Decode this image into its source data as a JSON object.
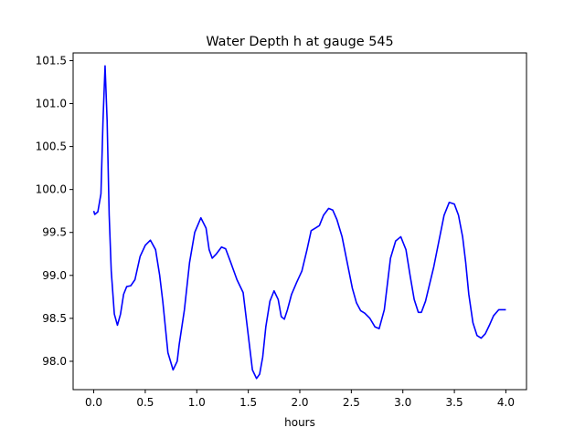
{
  "chart_data": {
    "type": "line",
    "title": "Water Depth h at gauge 545",
    "xlabel": "hours",
    "ylabel": "",
    "xlim": [
      -0.2,
      4.2
    ],
    "ylim": [
      97.67,
      101.59
    ],
    "grid": false,
    "xticks": [
      0.0,
      0.5,
      1.0,
      1.5,
      2.0,
      2.5,
      3.0,
      3.5,
      4.0
    ],
    "xtick_labels": [
      "0.0",
      "0.5",
      "1.0",
      "1.5",
      "2.0",
      "2.5",
      "3.0",
      "3.5",
      "4.0"
    ],
    "yticks": [
      98.0,
      98.5,
      99.0,
      99.5,
      100.0,
      100.5,
      101.0,
      101.5
    ],
    "ytick_labels": [
      "98.0",
      "98.5",
      "99.0",
      "99.5",
      "100.0",
      "100.5",
      "101.0",
      "101.5"
    ],
    "series": [
      {
        "color": "#0000ff",
        "x": [
          0.0,
          0.01,
          0.04,
          0.07,
          0.09,
          0.11,
          0.13,
          0.15,
          0.17,
          0.2,
          0.23,
          0.26,
          0.29,
          0.32,
          0.36,
          0.4,
          0.45,
          0.5,
          0.55,
          0.6,
          0.64,
          0.67,
          0.72,
          0.77,
          0.81,
          0.83,
          0.88,
          0.93,
          0.98,
          1.04,
          1.09,
          1.12,
          1.15,
          1.19,
          1.24,
          1.28,
          1.33,
          1.39,
          1.45,
          1.5,
          1.54,
          1.58,
          1.61,
          1.64,
          1.67,
          1.71,
          1.75,
          1.79,
          1.82,
          1.85,
          1.88,
          1.92,
          1.97,
          2.02,
          2.07,
          2.11,
          2.15,
          2.19,
          2.23,
          2.28,
          2.32,
          2.36,
          2.41,
          2.46,
          2.51,
          2.55,
          2.59,
          2.63,
          2.68,
          2.73,
          2.77,
          2.82,
          2.85,
          2.88,
          2.93,
          2.98,
          3.03,
          3.07,
          3.11,
          3.15,
          3.18,
          3.22,
          3.26,
          3.3,
          3.35,
          3.4,
          3.45,
          3.5,
          3.54,
          3.58,
          3.61,
          3.64,
          3.68,
          3.72,
          3.76,
          3.8,
          3.84,
          3.88,
          3.93,
          3.98,
          4.0
        ],
        "y": [
          99.75,
          99.71,
          99.74,
          99.95,
          100.8,
          101.44,
          100.8,
          99.7,
          99.05,
          98.55,
          98.42,
          98.55,
          98.78,
          98.87,
          98.88,
          98.95,
          99.22,
          99.35,
          99.41,
          99.3,
          99.0,
          98.7,
          98.1,
          97.9,
          98.0,
          98.2,
          98.6,
          99.15,
          99.5,
          99.67,
          99.55,
          99.3,
          99.2,
          99.25,
          99.33,
          99.31,
          99.15,
          98.95,
          98.8,
          98.3,
          97.9,
          97.8,
          97.85,
          98.05,
          98.4,
          98.7,
          98.82,
          98.72,
          98.52,
          98.49,
          98.6,
          98.78,
          98.92,
          99.05,
          99.3,
          99.52,
          99.55,
          99.58,
          99.7,
          99.78,
          99.76,
          99.65,
          99.45,
          99.15,
          98.85,
          98.68,
          98.59,
          98.56,
          98.5,
          98.4,
          98.38,
          98.6,
          98.9,
          99.2,
          99.4,
          99.45,
          99.3,
          99.0,
          98.72,
          98.57,
          98.57,
          98.7,
          98.9,
          99.1,
          99.4,
          99.7,
          99.85,
          99.83,
          99.7,
          99.45,
          99.15,
          98.78,
          98.45,
          98.3,
          98.27,
          98.32,
          98.42,
          98.53,
          98.6,
          98.6,
          98.6
        ]
      }
    ]
  }
}
